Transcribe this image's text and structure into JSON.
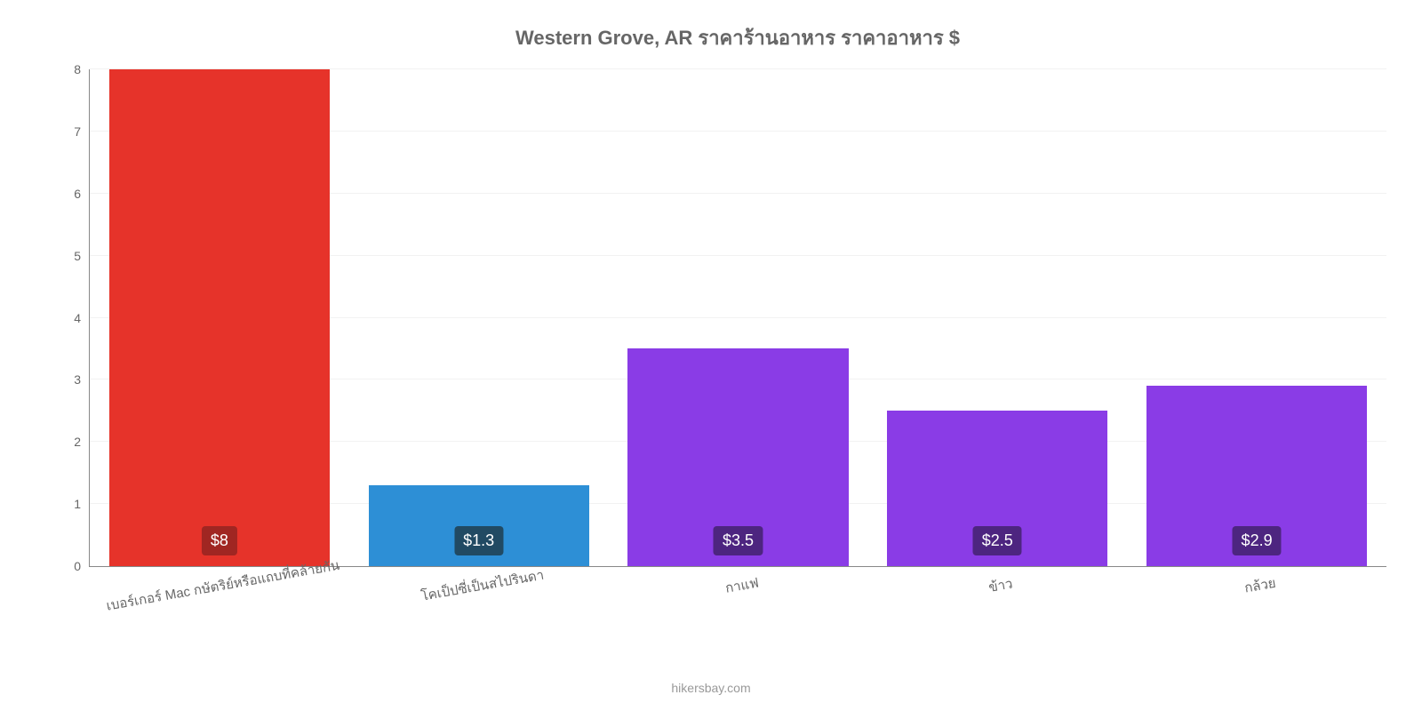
{
  "chart": {
    "type": "bar",
    "title": "Western Grove, AR ราคาร้านอาหาร ราคาอาหาร $",
    "title_color": "#666666",
    "title_fontsize": 22,
    "title_fontweight": 700,
    "background_color": "#ffffff",
    "axis_color": "#888888",
    "grid_color": "#f2f2f2",
    "xtick_color": "#666666",
    "xtick_fontsize": 15,
    "xtick_rotation_deg": -10,
    "ytick_color": "#666666",
    "ytick_fontsize": 14,
    "ylim": [
      0,
      8
    ],
    "ytick_step": 1,
    "bar_width_pct": 17,
    "bar_gap_pct": 3,
    "categories": [
      "เบอร์เกอร์ Mac กษัตริย์หรือแถบที่คล้ายกัน",
      "โคเป็ปซี่เป็นสไปรินดา",
      "กาแฟ",
      "ข้าว",
      "กล้วย"
    ],
    "values": [
      8,
      1.3,
      3.5,
      2.5,
      2.9
    ],
    "value_labels": [
      "$8",
      "$1.3",
      "$3.5",
      "$2.5",
      "$2.9"
    ],
    "bar_colors": [
      "#e6332a",
      "#2d8fd6",
      "#8a3ce6",
      "#8a3ce6",
      "#8a3ce6"
    ],
    "label_bg_colors": [
      "#a02622",
      "#214a63",
      "#4d2580",
      "#4d2580",
      "#4d2580"
    ],
    "label_text_color": "#ffffff",
    "label_fontsize": 18,
    "credit": "hikersbay.com",
    "credit_color": "#999999",
    "credit_fontsize": 14
  }
}
